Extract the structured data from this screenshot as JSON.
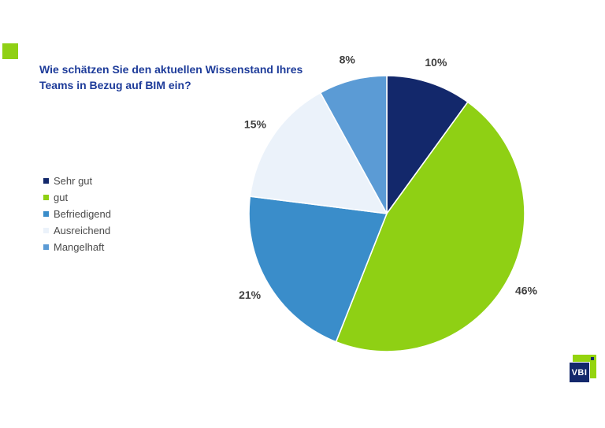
{
  "page": {
    "background": "#ffffff"
  },
  "decor": {
    "corner_square_color": "#8FD014"
  },
  "title": {
    "line1": "Wie schätzen Sie den aktuellen Wissenstand Ihres",
    "line2": "Teams in Bezug auf BIM ein?",
    "color": "#1E3C9A"
  },
  "legend": {
    "position": "left",
    "items": [
      {
        "label": "Sehr gut",
        "color": "#13286B"
      },
      {
        "label": "gut",
        "color": "#8FD014"
      },
      {
        "label": "Befriedigend",
        "color": "#3A8DCA"
      },
      {
        "label": "Ausreichend",
        "color": "#EBF2FA"
      },
      {
        "label": "Mangelhaft",
        "color": "#5B9BD5"
      }
    ]
  },
  "chart_data": {
    "type": "pie",
    "title": "Wie schätzen Sie den aktuellen Wissenstand Ihres Teams in Bezug auf BIM ein?",
    "categories": [
      "Sehr gut",
      "gut",
      "Befriedigend",
      "Ausreichend",
      "Mangelhaft"
    ],
    "values": [
      10,
      46,
      21,
      15,
      8
    ],
    "value_labels": [
      "10%",
      "46%",
      "21%",
      "15%",
      "8%"
    ],
    "colors": [
      "#13286B",
      "#8FD014",
      "#3A8DCA",
      "#EBF2FA",
      "#5B9BD5"
    ],
    "start_angle_deg": 0,
    "direction": "clockwise",
    "label_color": "#3F3F3F",
    "separator_color": "#FFFFFF",
    "legend_position": "left",
    "grid": false
  },
  "logo": {
    "text": "VBI",
    "green": "#94D40E",
    "navy": "#13286B",
    "text_color": "#FFFFFF"
  }
}
